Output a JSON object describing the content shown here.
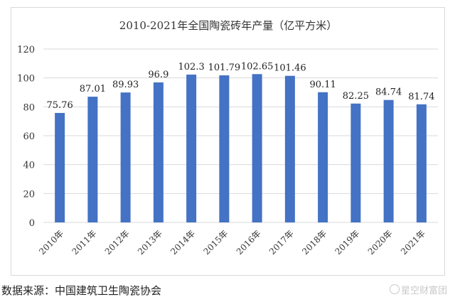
{
  "chart_data": {
    "type": "bar",
    "title": "2010-2021年全国陶瓷砖年产量（亿平方米）",
    "categories": [
      "2010年",
      "2011年",
      "2012年",
      "2013年",
      "2014年",
      "2015年",
      "2016年",
      "2017年",
      "2018年",
      "2019年",
      "2020年",
      "2021年"
    ],
    "values": [
      75.76,
      87.01,
      89.93,
      96.9,
      102.3,
      101.79,
      102.65,
      101.46,
      90.11,
      82.25,
      84.74,
      81.74
    ],
    "value_labels": [
      "75.76",
      "87.01",
      "89.93",
      "96.9",
      "102.3",
      "101.79",
      "102.65",
      "101.46",
      "90.11",
      "82.25",
      "84.74",
      "81.74"
    ],
    "ylim": [
      0,
      120
    ],
    "yticks": [
      "0",
      "20",
      "40",
      "60",
      "80",
      "100",
      "120"
    ],
    "ytick_values": [
      0,
      20,
      40,
      60,
      80,
      100,
      120
    ],
    "grid": true,
    "legend": "none",
    "bar_color": "#4472c4",
    "grid_color": "#d9d9d9"
  },
  "source_note": "数据来源：中国建筑卫生陶瓷协会",
  "watermark": "星空财富团"
}
